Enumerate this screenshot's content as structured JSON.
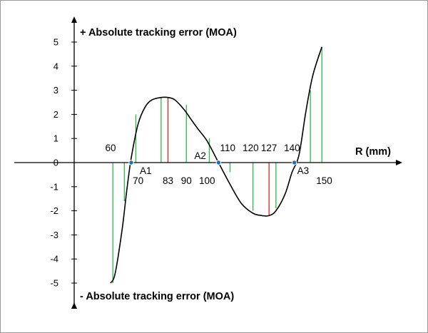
{
  "chart_data": {
    "type": "line",
    "title_top": "+ Absolute tracking error (MOA)",
    "title_bottom": "- Absolute tracking error (MOA)",
    "xlabel": "R (mm)",
    "ylim": [
      -5,
      5
    ],
    "yticks": [
      5,
      4,
      3,
      2,
      1,
      0,
      -1,
      -2,
      -3,
      -4,
      -5
    ],
    "xlim": [
      52,
      162
    ],
    "curve": {
      "x": [
        58,
        60,
        63,
        65,
        67,
        70,
        73,
        76,
        80,
        83,
        86,
        90,
        93,
        96,
        100,
        105,
        110,
        115,
        120,
        124,
        127,
        130,
        134,
        137,
        140,
        143,
        146,
        150
      ],
      "y": [
        -5,
        -4.6,
        -2.8,
        -1.2,
        0.2,
        1.6,
        2.3,
        2.6,
        2.7,
        2.7,
        2.6,
        2.2,
        1.8,
        1.4,
        0.9,
        0,
        -0.9,
        -1.7,
        -2.1,
        -2.2,
        -2.2,
        -2.0,
        -1.3,
        -0.4,
        0.3,
        2.1,
        3.6,
        4.8
      ]
    },
    "stems": [
      {
        "x": 59,
        "y": -5,
        "highlight": false
      },
      {
        "x": 64,
        "y": -1.6,
        "highlight": false
      },
      {
        "x": 69,
        "y": 2.0,
        "highlight": false
      },
      {
        "x": 80,
        "y": 2.7,
        "highlight": false
      },
      {
        "x": 83,
        "y": 2.7,
        "highlight": true
      },
      {
        "x": 91,
        "y": 2.4,
        "highlight": false
      },
      {
        "x": 101,
        "y": 1.0,
        "highlight": false
      },
      {
        "x": 110,
        "y": -0.4,
        "highlight": false
      },
      {
        "x": 120,
        "y": -2.0,
        "highlight": false
      },
      {
        "x": 127,
        "y": -2.2,
        "highlight": true
      },
      {
        "x": 130,
        "y": -1.9,
        "highlight": false
      },
      {
        "x": 145,
        "y": 3.0,
        "highlight": false
      },
      {
        "x": 150,
        "y": 4.8,
        "highlight": false
      }
    ],
    "zero_crossings": [
      {
        "label": "A1",
        "x": 67
      },
      {
        "label": "A2",
        "x": 105
      },
      {
        "label": "A3",
        "x": 138
      }
    ],
    "r_labels": [
      {
        "text": "60",
        "x": 58,
        "pos": "above",
        "highlight": false
      },
      {
        "text": "70",
        "x": 70,
        "pos": "below",
        "highlight": false
      },
      {
        "text": "83",
        "x": 83,
        "pos": "below",
        "highlight": true
      },
      {
        "text": "90",
        "x": 91,
        "pos": "below",
        "highlight": false
      },
      {
        "text": "100",
        "x": 100,
        "pos": "below",
        "highlight": false
      },
      {
        "text": "110",
        "x": 109,
        "pos": "above",
        "highlight": false
      },
      {
        "text": "120",
        "x": 119,
        "pos": "above",
        "highlight": false
      },
      {
        "text": "127",
        "x": 127,
        "pos": "above",
        "highlight": true
      },
      {
        "text": "140",
        "x": 137,
        "pos": "above",
        "highlight": false
      },
      {
        "text": "150",
        "x": 151,
        "pos": "below",
        "highlight": false
      }
    ],
    "grid": false,
    "colors": {
      "curve": "#000000",
      "stem": "#2db84a",
      "stem_highlight": "#e02020",
      "point": "#1f6fb5",
      "point_label": "#1f6fb5",
      "highlight_label": "#e02020"
    }
  }
}
